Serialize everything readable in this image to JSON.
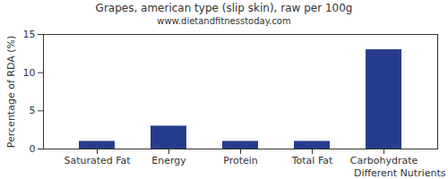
{
  "chart_data": {
    "type": "bar",
    "title": "Grapes, american type (slip skin), raw per 100g",
    "subtitle": "www.dietandfitnesstoday.com",
    "x_label": "Different Nutrients",
    "y_label": "Percentage of RDA (%)",
    "categories": [
      "Saturated Fat",
      "Energy",
      "Protein",
      "Total Fat",
      "Carbohydrate"
    ],
    "values": [
      1,
      3,
      1,
      1,
      13
    ],
    "color": "#253d8c",
    "ylim": [
      0,
      15
    ],
    "yticks": [
      0,
      5,
      10,
      15
    ],
    "grid": false
  }
}
